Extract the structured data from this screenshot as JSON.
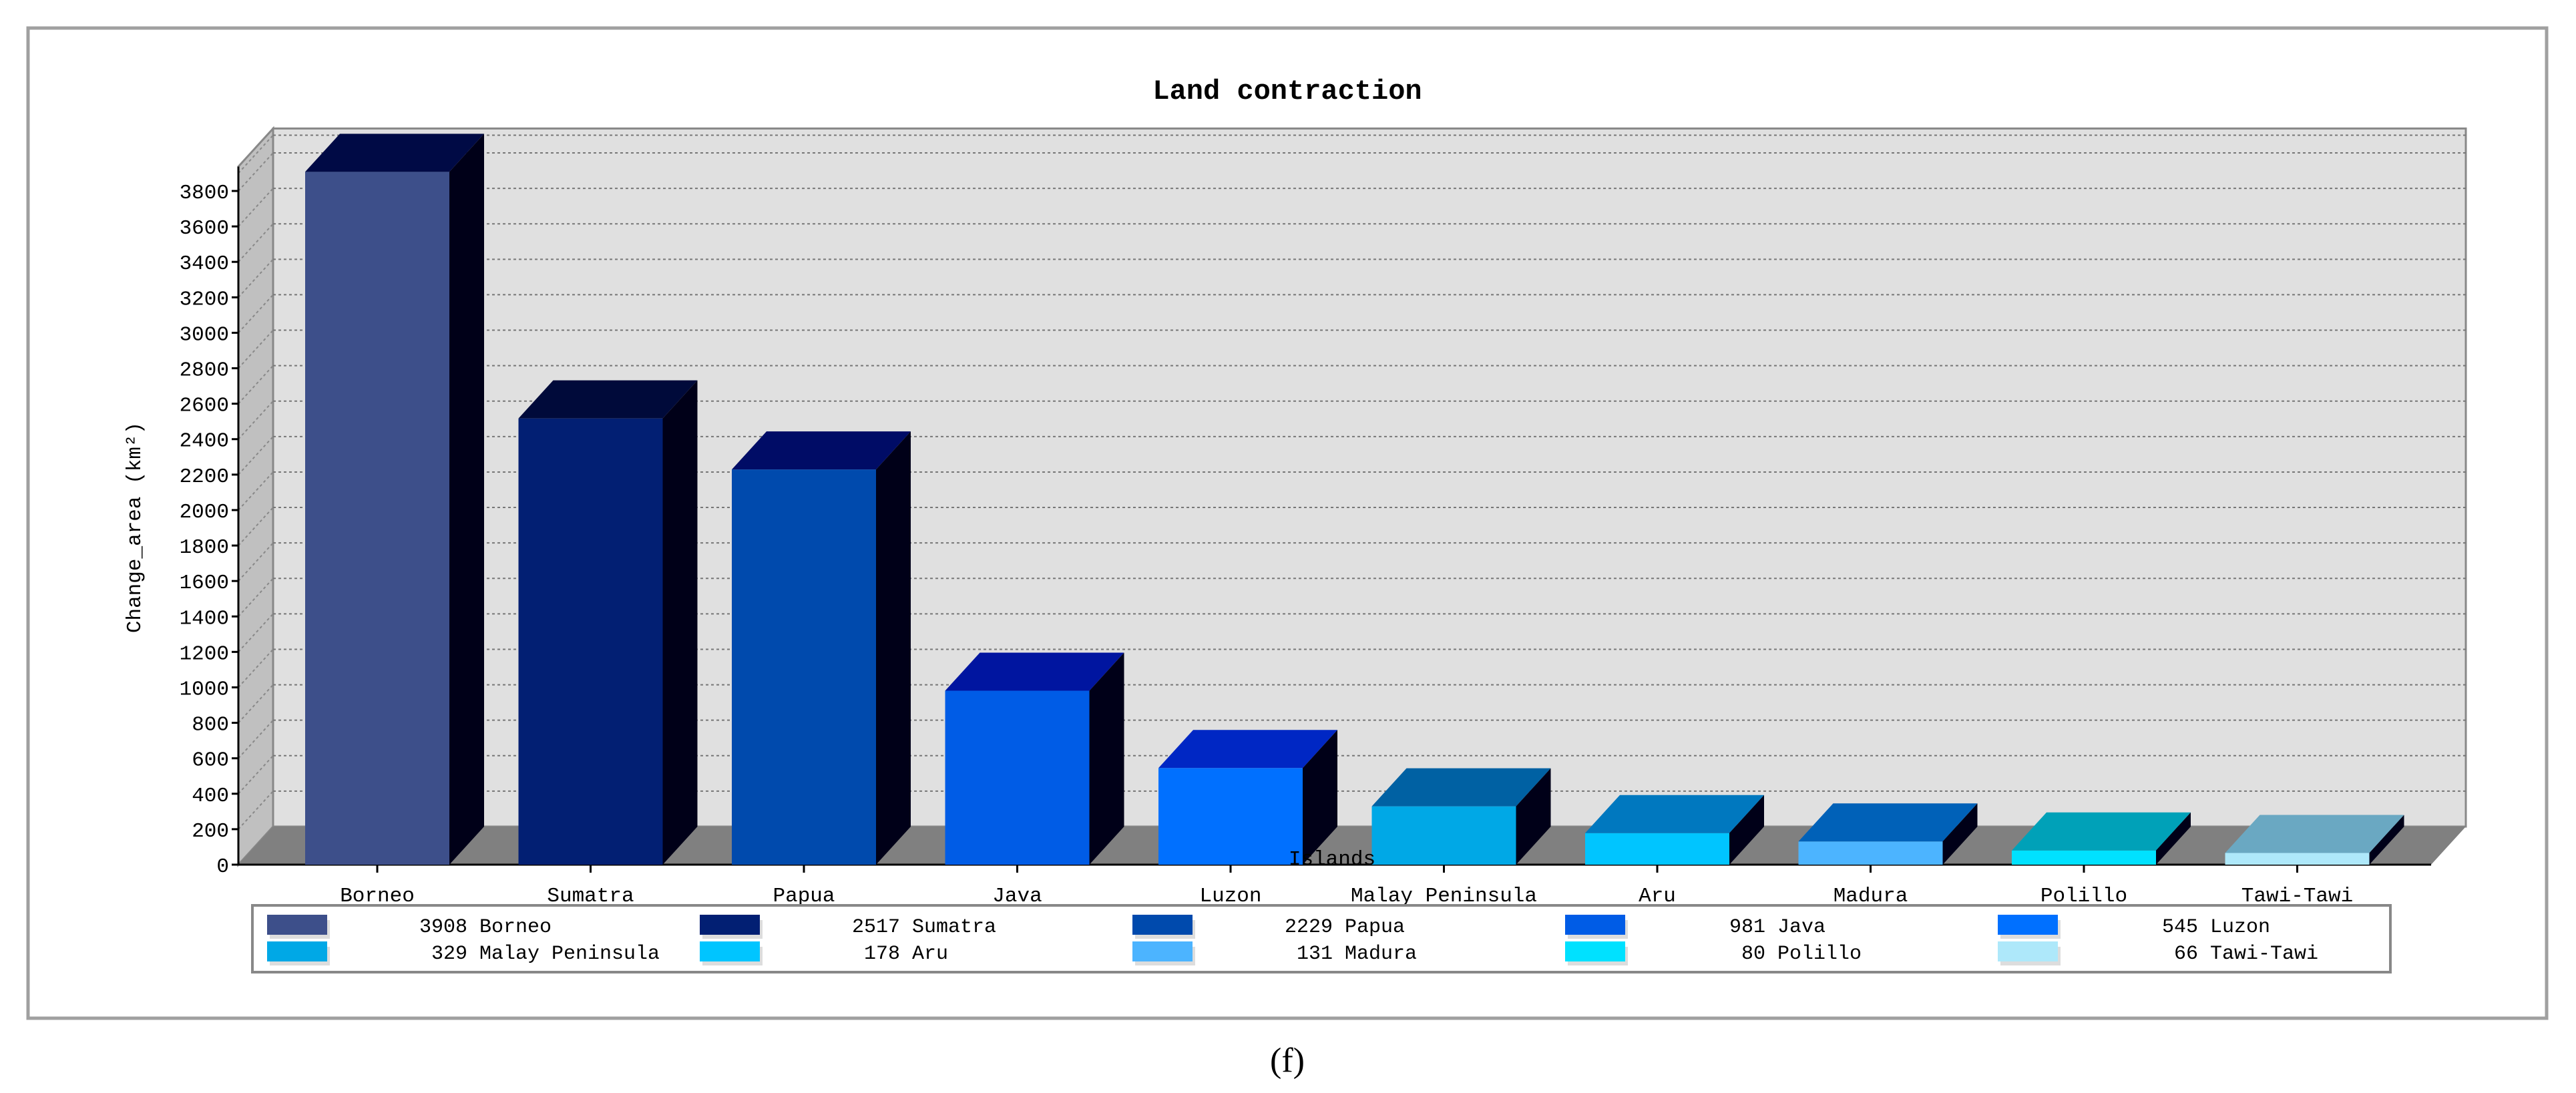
{
  "chart_data": {
    "type": "bar",
    "title": "Land contraction",
    "xlabel": "Islands",
    "ylabel": "Change_area (km²)",
    "categories": [
      "Borneo",
      "Sumatra",
      "Papua",
      "Java",
      "Luzon",
      "Malay Peninsula",
      "Aru",
      "Madura",
      "Polillo",
      "Tawi-Tawi"
    ],
    "values": [
      3908,
      2517,
      2229,
      981,
      545,
      329,
      178,
      131,
      80,
      66
    ],
    "colors": [
      "#3d4f8a",
      "#021f73",
      "#004aad",
      "#005ce6",
      "#0070ff",
      "#00a8e6",
      "#00c5ff",
      "#4cb4ff",
      "#00e1ff",
      "#aee8fa"
    ],
    "top_colors": [
      "#000a45",
      "#000a3a",
      "#000c66",
      "#0015a0",
      "#0027c4",
      "#0061a3",
      "#0078bf",
      "#0061b8",
      "#00a1b8",
      "#6aa8c2"
    ],
    "yticks": [
      0,
      200,
      400,
      600,
      800,
      1000,
      1200,
      1400,
      1600,
      1800,
      2000,
      2200,
      2400,
      2600,
      2800,
      3000,
      3200,
      3400,
      3600,
      3800
    ],
    "ylim": [
      0,
      3900
    ],
    "grid": true,
    "three_d": true,
    "legend_position": "bottom",
    "legend": [
      {
        "value": "3908",
        "label": "Borneo"
      },
      {
        "value": "2517",
        "label": "Sumatra"
      },
      {
        "value": "2229",
        "label": "Papua"
      },
      {
        "value": "981",
        "label": "Java"
      },
      {
        "value": "545",
        "label": "Luzon"
      },
      {
        "value": "329",
        "label": "Malay Peninsula"
      },
      {
        "value": "178",
        "label": "Aru"
      },
      {
        "value": "131",
        "label": "Madura"
      },
      {
        "value": "80",
        "label": "Polillo"
      },
      {
        "value": "66",
        "label": "Tawi-Tawi"
      }
    ]
  },
  "caption": "(f)"
}
